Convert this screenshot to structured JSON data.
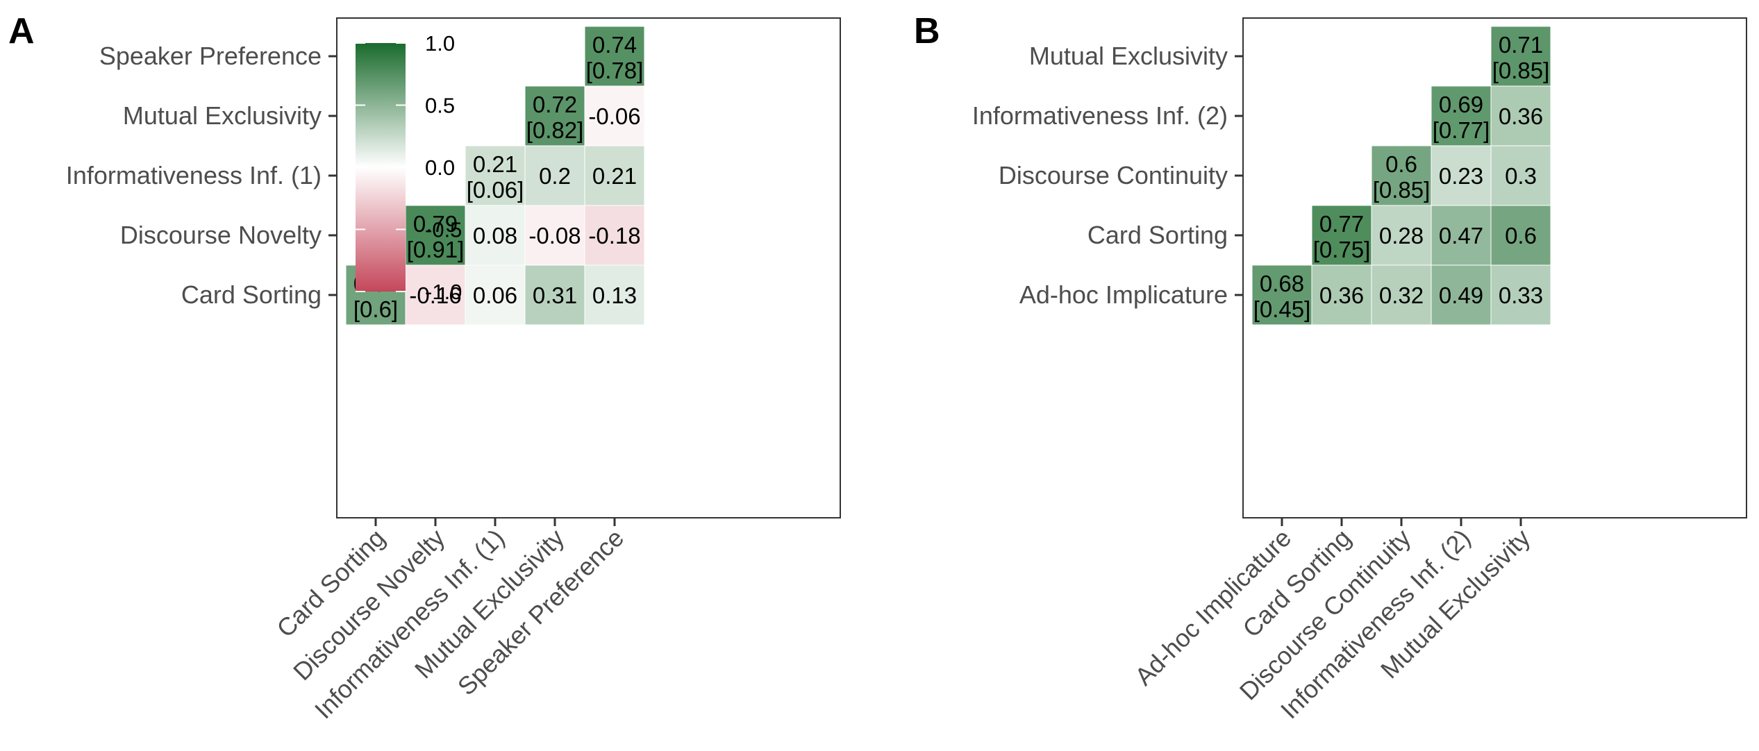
{
  "chart_data": [
    {
      "type": "heatmap",
      "panel_label": "A",
      "categories": [
        "Card Sorting",
        "Discourse Novelty",
        "Informativeness Inf. (1)",
        "Mutual Exclusivity",
        "Speaker Preference"
      ],
      "diagonal": [
        {
          "value": 0.62,
          "bracket": "[0.6]"
        },
        {
          "value": 0.79,
          "bracket": "[0.91]"
        },
        {
          "value": 0.21,
          "bracket": "[0.06]"
        },
        {
          "value": 0.72,
          "bracket": "[0.82]"
        },
        {
          "value": 0.74,
          "bracket": "[0.78]"
        }
      ],
      "off_diagonal": [
        {
          "row": "Card Sorting",
          "col": "Discourse Novelty",
          "value": -0.16
        },
        {
          "row": "Card Sorting",
          "col": "Informativeness Inf. (1)",
          "value": 0.06
        },
        {
          "row": "Card Sorting",
          "col": "Mutual Exclusivity",
          "value": 0.31
        },
        {
          "row": "Card Sorting",
          "col": "Speaker Preference",
          "value": 0.13
        },
        {
          "row": "Discourse Novelty",
          "col": "Informativeness Inf. (1)",
          "value": 0.08
        },
        {
          "row": "Discourse Novelty",
          "col": "Mutual Exclusivity",
          "value": -0.08
        },
        {
          "row": "Discourse Novelty",
          "col": "Speaker Preference",
          "value": -0.18
        },
        {
          "row": "Informativeness Inf. (1)",
          "col": "Mutual Exclusivity",
          "value": 0.2
        },
        {
          "row": "Informativeness Inf. (1)",
          "col": "Speaker Preference",
          "value": 0.21
        },
        {
          "row": "Mutual Exclusivity",
          "col": "Speaker Preference",
          "value": -0.06
        }
      ],
      "legend": {
        "ticks": [
          "1.0",
          "0.5",
          "0.0",
          "-0.5",
          "-1.0"
        ],
        "range": [
          -1,
          1
        ],
        "placement": "top-left inside"
      }
    },
    {
      "type": "heatmap",
      "panel_label": "B",
      "categories": [
        "Ad-hoc Implicature",
        "Card Sorting",
        "Discourse Continuity",
        "Informativeness Inf. (2)",
        "Mutual Exclusivity"
      ],
      "diagonal": [
        {
          "value": 0.68,
          "bracket": "[0.45]"
        },
        {
          "value": 0.77,
          "bracket": "[0.75]"
        },
        {
          "value": 0.6,
          "bracket": "[0.85]"
        },
        {
          "value": 0.69,
          "bracket": "[0.77]"
        },
        {
          "value": 0.71,
          "bracket": "[0.85]"
        }
      ],
      "off_diagonal": [
        {
          "row": "Ad-hoc Implicature",
          "col": "Card Sorting",
          "value": 0.36
        },
        {
          "row": "Ad-hoc Implicature",
          "col": "Discourse Continuity",
          "value": 0.32
        },
        {
          "row": "Ad-hoc Implicature",
          "col": "Informativeness Inf. (2)",
          "value": 0.49
        },
        {
          "row": "Ad-hoc Implicature",
          "col": "Mutual Exclusivity",
          "value": 0.33
        },
        {
          "row": "Card Sorting",
          "col": "Discourse Continuity",
          "value": 0.28
        },
        {
          "row": "Card Sorting",
          "col": "Informativeness Inf. (2)",
          "value": 0.47
        },
        {
          "row": "Card Sorting",
          "col": "Mutual Exclusivity",
          "value": 0.6
        },
        {
          "row": "Discourse Continuity",
          "col": "Informativeness Inf. (2)",
          "value": 0.23
        },
        {
          "row": "Discourse Continuity",
          "col": "Mutual Exclusivity",
          "value": 0.3
        },
        {
          "row": "Informativeness Inf. (2)",
          "col": "Mutual Exclusivity",
          "value": 0.36
        }
      ]
    }
  ],
  "colors": {
    "positive": "#1a6b2d",
    "neutral": "#ffffff",
    "negative": "#c4475b",
    "panel_border": "#333333",
    "axis_text": "#4d4d4d"
  }
}
